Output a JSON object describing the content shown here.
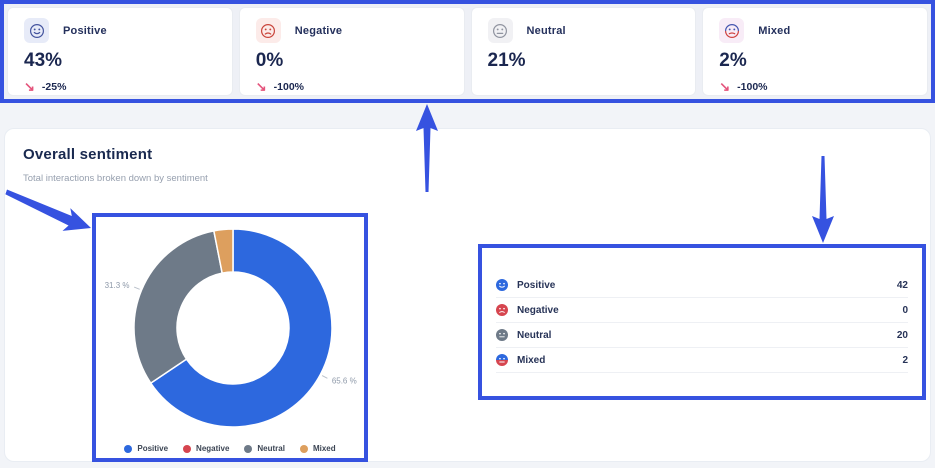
{
  "annotation": {
    "color": "#3652e0"
  },
  "glyphs": {
    "trend_down": "↘"
  },
  "stat_cards": [
    {
      "label": "Positive",
      "value": "43%",
      "trend": "-25%",
      "icon": "positive-smiley-icon",
      "icon_bg": "#e7ebf8",
      "icon_color": "#44549e"
    },
    {
      "label": "Negative",
      "value": "0%",
      "trend": "-100%",
      "icon": "negative-frown-icon",
      "icon_bg": "#fcebe9",
      "icon_color": "#c9453c"
    },
    {
      "label": "Neutral",
      "value": "21%",
      "trend": "",
      "icon": "neutral-face-icon",
      "icon_bg": "#f1f1f4",
      "icon_color": "#9094a0"
    },
    {
      "label": "Mixed",
      "value": "2%",
      "trend": "-100%",
      "icon": "mixed-face-icon",
      "icon_bg": "#f8ecf7",
      "icon_color": "#4456b0",
      "icon_color2": "#cf4340"
    }
  ],
  "overall_sentiment": {
    "title": "Overall sentiment",
    "subtitle": "Total interactions broken down by sentiment"
  },
  "chart_data": {
    "type": "pie",
    "donut": true,
    "title": "Overall sentiment",
    "categories": [
      "Positive",
      "Negative",
      "Neutral",
      "Mixed"
    ],
    "values": [
      42,
      0,
      20,
      2
    ],
    "percentages": [
      65.6,
      0,
      31.3,
      3.1
    ],
    "colors": [
      "#2d68de",
      "#d6454f",
      "#6e7a88",
      "#dd9f5e"
    ],
    "slice_labels": {
      "positive": "65.6 %",
      "neutral": "31.3 %"
    },
    "legend": [
      "Positive",
      "Negative",
      "Neutral",
      "Mixed"
    ],
    "legend_position": "bottom",
    "start_angle_deg": -90,
    "direction": "clockwise"
  },
  "breakdown_table": {
    "rows": [
      {
        "label": "Positive",
        "value": "42"
      },
      {
        "label": "Negative",
        "value": "0"
      },
      {
        "label": "Neutral",
        "value": "20"
      },
      {
        "label": "Mixed",
        "value": "2"
      }
    ]
  }
}
